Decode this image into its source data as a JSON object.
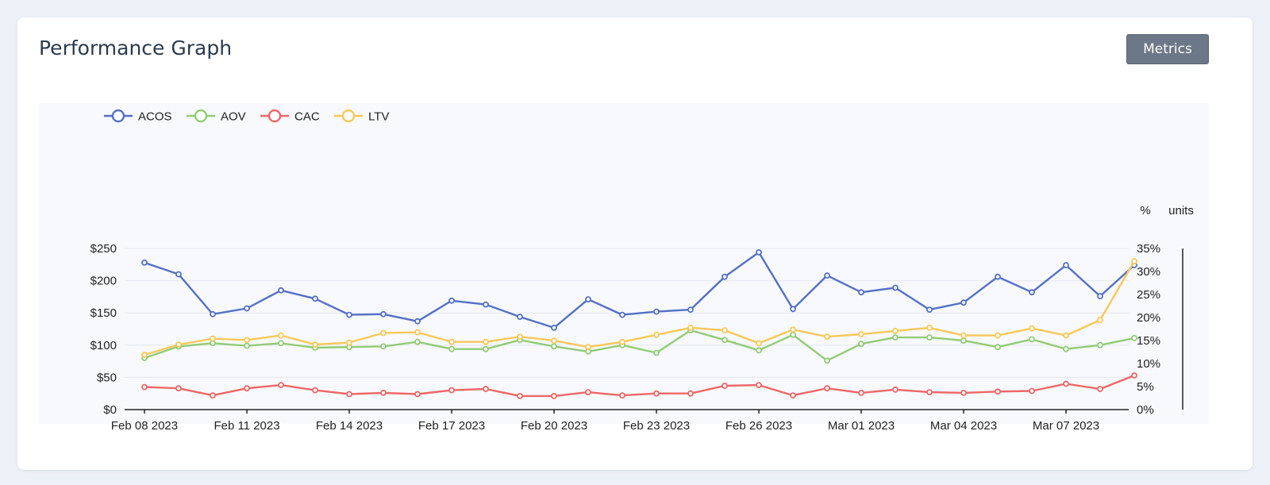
{
  "card": {
    "title": "Performance Graph",
    "metrics_button": "Metrics"
  },
  "colors": {
    "ACOS": "#5470c6",
    "AOV": "#91cc75",
    "CAC": "#ee6666",
    "LTV": "#fac858"
  },
  "chart_data": {
    "type": "line",
    "x": [
      "Feb 08 2023",
      "Feb 09 2023",
      "Feb 10 2023",
      "Feb 11 2023",
      "Feb 12 2023",
      "Feb 13 2023",
      "Feb 14 2023",
      "Feb 15 2023",
      "Feb 16 2023",
      "Feb 17 2023",
      "Feb 18 2023",
      "Feb 19 2023",
      "Feb 20 2023",
      "Feb 21 2023",
      "Feb 22 2023",
      "Feb 23 2023",
      "Feb 24 2023",
      "Feb 25 2023",
      "Feb 26 2023",
      "Feb 27 2023",
      "Feb 28 2023",
      "Mar 01 2023",
      "Mar 02 2023",
      "Mar 03 2023",
      "Mar 04 2023",
      "Mar 05 2023",
      "Mar 06 2023",
      "Mar 07 2023",
      "Mar 08 2023",
      "Mar 09 2023"
    ],
    "x_tick_labels": [
      "Feb 08 2023",
      "Feb 11 2023",
      "Feb 14 2023",
      "Feb 17 2023",
      "Feb 20 2023",
      "Feb 23 2023",
      "Feb 26 2023",
      "Mar 01 2023",
      "Mar 04 2023",
      "Mar 07 2023"
    ],
    "left_axis": {
      "ticks": [
        "$0",
        "$50",
        "$100",
        "$150",
        "$200",
        "$250"
      ],
      "ylim": [
        0,
        250
      ]
    },
    "right_axis": {
      "unit_label": "%",
      "ticks": [
        "0%",
        "5%",
        "10%",
        "15%",
        "20%",
        "25%",
        "30%",
        "35%"
      ],
      "ylim": [
        0,
        35
      ]
    },
    "third_axis": {
      "unit_label": "units"
    },
    "legend": {
      "position": "top-left"
    },
    "series": [
      {
        "name": "ACOS",
        "axis": "left",
        "values": [
          228,
          210,
          148,
          157,
          185,
          172,
          147,
          148,
          137,
          169,
          163,
          144,
          127,
          171,
          147,
          152,
          155,
          206,
          244,
          156,
          208,
          182,
          189,
          155,
          166,
          206,
          182,
          224,
          176,
          224
        ]
      },
      {
        "name": "AOV",
        "axis": "left",
        "values": [
          80,
          98,
          103,
          99,
          103,
          96,
          97,
          98,
          105,
          94,
          94,
          108,
          98,
          90,
          100,
          88,
          123,
          108,
          92,
          116,
          76,
          102,
          112,
          112,
          107,
          97,
          109,
          94,
          100,
          111
        ]
      },
      {
        "name": "CAC",
        "axis": "left",
        "values": [
          35,
          33,
          22,
          33,
          38,
          30,
          24,
          26,
          24,
          30,
          32,
          21,
          21,
          27,
          22,
          25,
          25,
          37,
          38,
          22,
          33,
          26,
          31,
          27,
          26,
          28,
          29,
          40,
          32,
          53
        ]
      },
      {
        "name": "LTV",
        "axis": "left",
        "values": [
          85,
          101,
          110,
          108,
          115,
          101,
          104,
          119,
          120,
          105,
          105,
          113,
          107,
          97,
          105,
          116,
          127,
          123,
          103,
          124,
          113,
          117,
          122,
          127,
          115,
          115,
          126,
          115,
          139,
          230
        ]
      }
    ]
  }
}
